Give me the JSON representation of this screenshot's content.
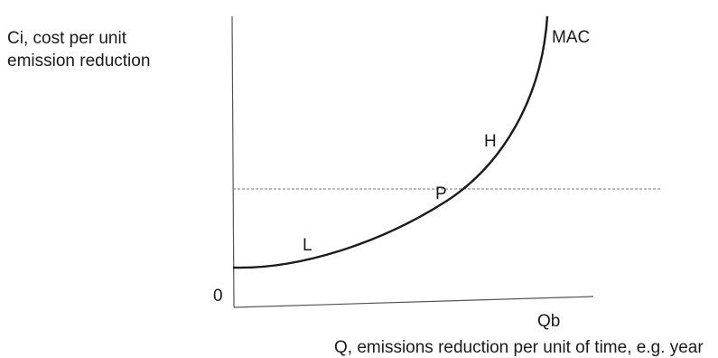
{
  "diagram": {
    "y_axis_label": [
      "Ci, cost per unit",
      "emission reduction"
    ],
    "x_axis_label": "Q, emissions reduction per unit of time, e.g. year",
    "origin_label": "0",
    "x_end_label": "Qb",
    "curve_label": "MAC",
    "points": {
      "low": "L",
      "price": "P",
      "high": "H"
    },
    "colors": {
      "curve": "#1a1a1a",
      "axes": "#555555",
      "price_line": "#777777"
    }
  }
}
